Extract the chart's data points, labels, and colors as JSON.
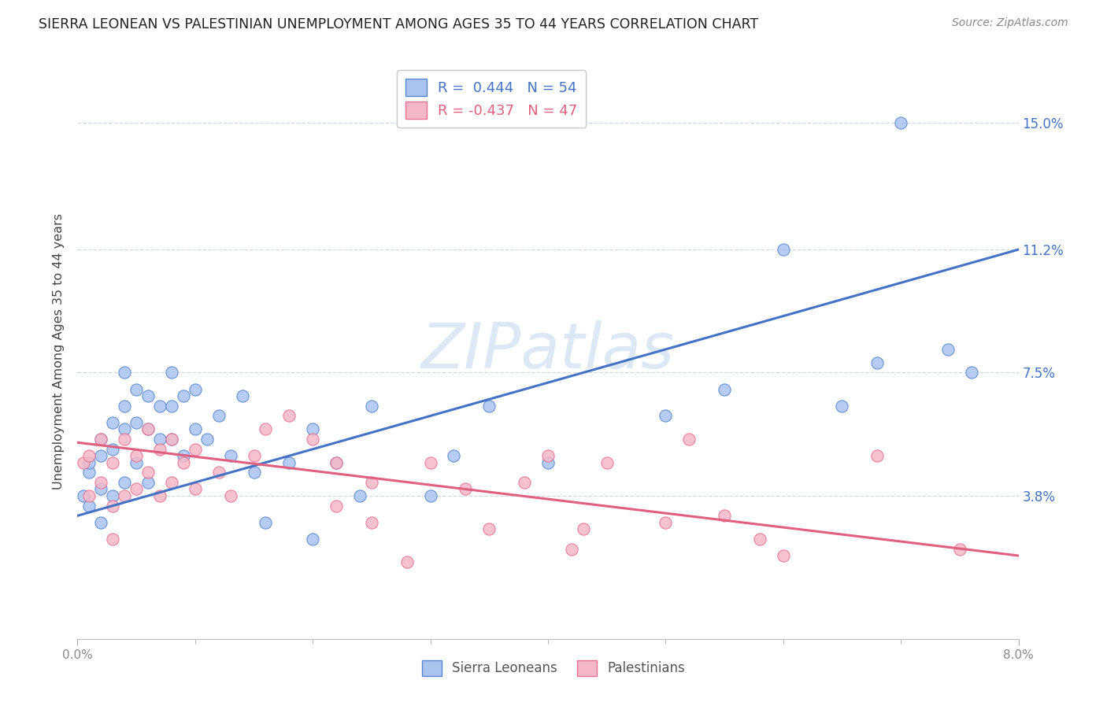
{
  "title": "SIERRA LEONEAN VS PALESTINIAN UNEMPLOYMENT AMONG AGES 35 TO 44 YEARS CORRELATION CHART",
  "source": "Source: ZipAtlas.com",
  "ylabel": "Unemployment Among Ages 35 to 44 years",
  "ytick_labels": [
    "3.8%",
    "7.5%",
    "11.2%",
    "15.0%"
  ],
  "ytick_values": [
    0.038,
    0.075,
    0.112,
    0.15
  ],
  "xlim": [
    0.0,
    0.08
  ],
  "ylim": [
    -0.005,
    0.168
  ],
  "blue_label": "Sierra Leoneans",
  "pink_label": "Palestinians",
  "blue_R": "0.444",
  "blue_N": "54",
  "pink_R": "-0.437",
  "pink_N": "47",
  "blue_color": "#aac4f0",
  "pink_color": "#f5b8c8",
  "blue_edge_color": "#5585d0",
  "pink_edge_color": "#e87090",
  "blue_line_color": "#4472C4",
  "pink_line_color": "#E06080",
  "watermark_color": "#dce9f5",
  "bg_color": "#ffffff",
  "grid_color": "#d0d8e0",
  "tick_color": "#888888",
  "title_color": "#222222",
  "source_color": "#888888",
  "ylabel_color": "#444444",
  "blue_scatter_x": [
    0.0005,
    0.001,
    0.001,
    0.001,
    0.002,
    0.002,
    0.002,
    0.002,
    0.003,
    0.003,
    0.003,
    0.004,
    0.004,
    0.004,
    0.004,
    0.005,
    0.005,
    0.005,
    0.006,
    0.006,
    0.006,
    0.007,
    0.007,
    0.008,
    0.008,
    0.008,
    0.009,
    0.009,
    0.01,
    0.01,
    0.011,
    0.012,
    0.013,
    0.014,
    0.015,
    0.016,
    0.018,
    0.02,
    0.02,
    0.022,
    0.024,
    0.025,
    0.03,
    0.032,
    0.035,
    0.04,
    0.05,
    0.055,
    0.06,
    0.065,
    0.068,
    0.07,
    0.074,
    0.076
  ],
  "blue_scatter_y": [
    0.038,
    0.045,
    0.035,
    0.048,
    0.055,
    0.05,
    0.04,
    0.03,
    0.06,
    0.052,
    0.038,
    0.075,
    0.065,
    0.058,
    0.042,
    0.07,
    0.06,
    0.048,
    0.068,
    0.058,
    0.042,
    0.065,
    0.055,
    0.075,
    0.065,
    0.055,
    0.068,
    0.05,
    0.07,
    0.058,
    0.055,
    0.062,
    0.05,
    0.068,
    0.045,
    0.03,
    0.048,
    0.025,
    0.058,
    0.048,
    0.038,
    0.065,
    0.038,
    0.05,
    0.065,
    0.048,
    0.062,
    0.07,
    0.112,
    0.065,
    0.078,
    0.15,
    0.082,
    0.075
  ],
  "pink_scatter_x": [
    0.0005,
    0.001,
    0.001,
    0.002,
    0.002,
    0.003,
    0.003,
    0.003,
    0.004,
    0.004,
    0.005,
    0.005,
    0.006,
    0.006,
    0.007,
    0.007,
    0.008,
    0.008,
    0.009,
    0.01,
    0.01,
    0.012,
    0.013,
    0.015,
    0.016,
    0.018,
    0.02,
    0.022,
    0.022,
    0.025,
    0.025,
    0.028,
    0.03,
    0.033,
    0.035,
    0.038,
    0.04,
    0.042,
    0.043,
    0.045,
    0.05,
    0.052,
    0.055,
    0.058,
    0.06,
    0.068,
    0.075
  ],
  "pink_scatter_y": [
    0.048,
    0.038,
    0.05,
    0.055,
    0.042,
    0.048,
    0.035,
    0.025,
    0.055,
    0.038,
    0.05,
    0.04,
    0.058,
    0.045,
    0.052,
    0.038,
    0.055,
    0.042,
    0.048,
    0.052,
    0.04,
    0.045,
    0.038,
    0.05,
    0.058,
    0.062,
    0.055,
    0.048,
    0.035,
    0.03,
    0.042,
    0.018,
    0.048,
    0.04,
    0.028,
    0.042,
    0.05,
    0.022,
    0.028,
    0.048,
    0.03,
    0.055,
    0.032,
    0.025,
    0.02,
    0.05,
    0.022
  ],
  "blue_trend_x": [
    0.0,
    0.08
  ],
  "blue_trend_y": [
    0.032,
    0.112
  ],
  "pink_trend_x": [
    0.0,
    0.08
  ],
  "pink_trend_y": [
    0.054,
    0.02
  ],
  "xtick_minor": [
    0.01,
    0.02,
    0.03,
    0.04,
    0.05,
    0.06,
    0.07
  ]
}
